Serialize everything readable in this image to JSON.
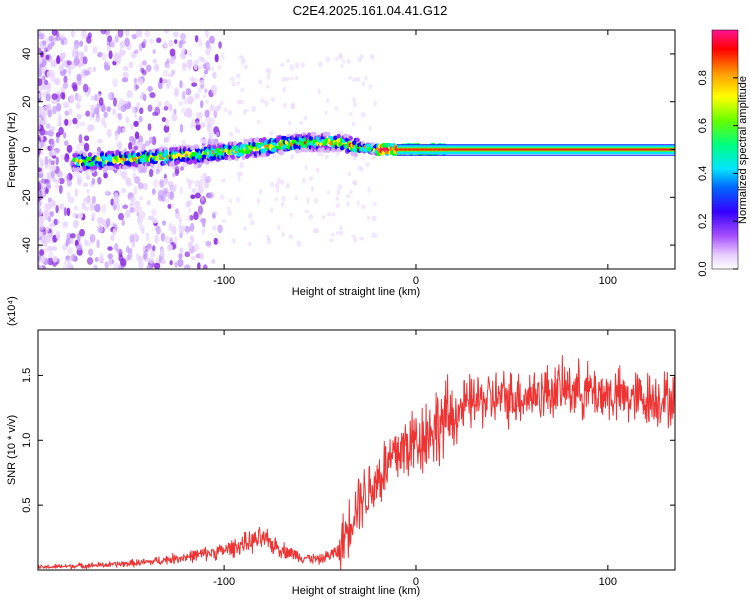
{
  "title": "C2E4.2025.161.04.41.G12",
  "chart_data": [
    {
      "type": "heatmap",
      "xlabel": "Height of straight line (km)",
      "ylabel": "Frequency (Hz)",
      "xlim": [
        -197,
        135
      ],
      "ylim": [
        -50,
        50
      ],
      "x_ticks": [
        -100,
        0,
        100
      ],
      "y_ticks": [
        -40,
        -20,
        0,
        20,
        40
      ],
      "colorbar": {
        "label": "Normalized spectral amplitude",
        "range": [
          0,
          1
        ],
        "ticks": [
          "0.0",
          "0.2",
          "0.4",
          "0.6",
          "0.8"
        ],
        "colors": [
          "#ffffff",
          "#d9b3ff",
          "#9b30ff",
          "#0000ff",
          "#00e5ff",
          "#00ff00",
          "#ffff00",
          "#ff8000",
          "#ff0000",
          "#ff1493"
        ]
      },
      "ridge": {
        "x": [
          -170,
          -150,
          -130,
          -110,
          -90,
          -70,
          -55,
          -40,
          -30,
          -20,
          -10,
          0,
          20,
          60,
          100,
          130
        ],
        "y": [
          -5,
          -4,
          -3,
          -2,
          0,
          2,
          3,
          3,
          1,
          0,
          0,
          0,
          0,
          0,
          0,
          0
        ]
      }
    },
    {
      "type": "line",
      "xlabel": "Height of straight line (km)",
      "ylabel": "SNR (10 * v/v)",
      "y_multiplier": "(x10⁴)",
      "xlim": [
        -197,
        135
      ],
      "ylim": [
        0,
        1.85
      ],
      "x_ticks": [
        -100,
        0,
        100
      ],
      "y_ticks": [
        "0.5",
        "1.0",
        "1.5"
      ],
      "line_color": "#ee3333",
      "series": [
        {
          "x": [
            -197,
            -180,
            -160,
            -140,
            -120,
            -100,
            -90,
            -80,
            -70,
            -60,
            -50,
            -40,
            -35,
            -30,
            -25,
            -20,
            -15,
            -10,
            -5,
            0,
            5,
            10,
            20,
            30,
            40,
            50,
            60,
            70,
            80,
            90,
            100,
            110,
            120,
            130,
            135
          ],
          "values": [
            0.02,
            0.03,
            0.04,
            0.06,
            0.1,
            0.15,
            0.2,
            0.24,
            0.16,
            0.1,
            0.08,
            0.15,
            0.35,
            0.55,
            0.6,
            0.7,
            0.8,
            0.9,
            0.95,
            1.0,
            1.05,
            1.1,
            1.2,
            1.3,
            1.32,
            1.33,
            1.35,
            1.38,
            1.4,
            1.38,
            1.35,
            1.33,
            1.32,
            1.32,
            1.3
          ]
        }
      ]
    }
  ]
}
